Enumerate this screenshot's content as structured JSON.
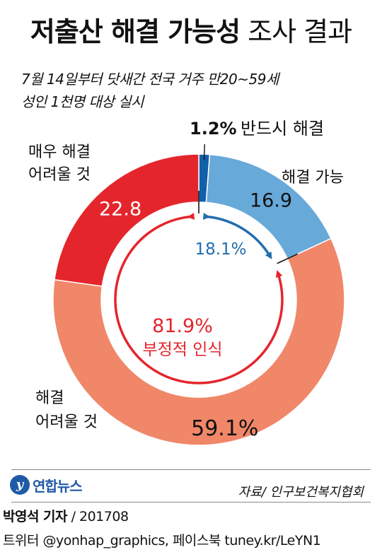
{
  "header": {
    "title_main": "저출산 해결 가능성",
    "title_sub": "조사 결과",
    "subtitle_line1": "7월 14일부터 닷새간 전국 거주 만20~59세",
    "subtitle_line2": "성인 1천명 대상 실시"
  },
  "chart_data": {
    "type": "pie",
    "unit": "%",
    "slices": [
      {
        "label": "반드시 해결",
        "value": 1.2,
        "value_text": "1.2%",
        "color": "#1160aa"
      },
      {
        "label": "해결 가능",
        "value": 16.9,
        "value_text": "16.9",
        "color": "#67a9d9"
      },
      {
        "label": "해결 어려울 것",
        "value": 59.1,
        "value_text": "59.1%",
        "color": "#f08769"
      },
      {
        "label": "매우 해결 어려울 것",
        "value": 22.8,
        "value_text": "22.8",
        "color": "#e5252c"
      }
    ],
    "labels": {
      "slice0_outside": "반드시 해결",
      "slice1_outside": "해결 가능",
      "slice2_line1": "해결",
      "slice2_line2": "어려울 것",
      "slice3_line1": "매우 해결",
      "slice3_line2": "어려울 것"
    },
    "positive_total": {
      "value": 18.1,
      "text": "18.1%",
      "color": "#1f6db0"
    },
    "negative_total": {
      "value": 81.9,
      "text": "81.9%",
      "label": "부정적 인식",
      "color": "#e5252c"
    }
  },
  "source": "자료/ 인구보건복지협회",
  "logo": {
    "glyph": "y",
    "text": "연합뉴스",
    "color": "#1f5aa6"
  },
  "footer": {
    "author": "박영석 기자",
    "date": "/ 201708",
    "social": "트위터 @yonhap_graphics, 페이스북 tuney.kr/LeYN1"
  }
}
